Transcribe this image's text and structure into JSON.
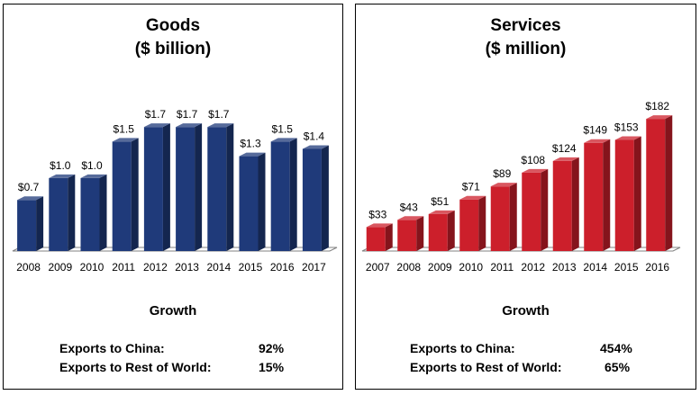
{
  "chart_data": [
    {
      "type": "bar",
      "title": "Goods",
      "subtitle": "($ billion)",
      "categories": [
        "2008",
        "2009",
        "2010",
        "2011",
        "2012",
        "2013",
        "2014",
        "2015",
        "2016",
        "2017"
      ],
      "values": [
        0.7,
        1.0,
        1.0,
        1.5,
        1.7,
        1.7,
        1.7,
        1.3,
        1.5,
        1.4
      ],
      "data_labels": [
        "$0.7",
        "$1.0",
        "$1.0",
        "$1.5",
        "$1.7",
        "$1.7",
        "$1.7",
        "$1.3",
        "$1.5",
        "$1.4"
      ],
      "ylim": [
        0,
        1.85
      ],
      "color": "#1f3a7a",
      "grid": false,
      "style": "3d-column"
    },
    {
      "type": "bar",
      "title": "Services",
      "subtitle": "($ million)",
      "categories": [
        "2007",
        "2008",
        "2009",
        "2010",
        "2011",
        "2012",
        "2013",
        "2014",
        "2015",
        "2016"
      ],
      "values": [
        33,
        43,
        51,
        71,
        89,
        108,
        124,
        149,
        153,
        182
      ],
      "data_labels": [
        "$33",
        "$43",
        "$51",
        "$71",
        "$89",
        "$108",
        "$124",
        "$149",
        "$153",
        "$182"
      ],
      "ylim": [
        0,
        197
      ],
      "color": "#cc1f2b",
      "grid": false,
      "style": "3d-column"
    }
  ],
  "goods": {
    "growth_label": "Growth",
    "metrics": [
      {
        "label": "Exports to China:",
        "value": "92%"
      },
      {
        "label": "Exports to Rest of World:",
        "value": "15%"
      }
    ]
  },
  "services": {
    "growth_label": "Growth",
    "metrics": [
      {
        "label": "Exports to China:",
        "value": "454%"
      },
      {
        "label": "Exports to Rest of World:",
        "value": "65%"
      }
    ]
  }
}
